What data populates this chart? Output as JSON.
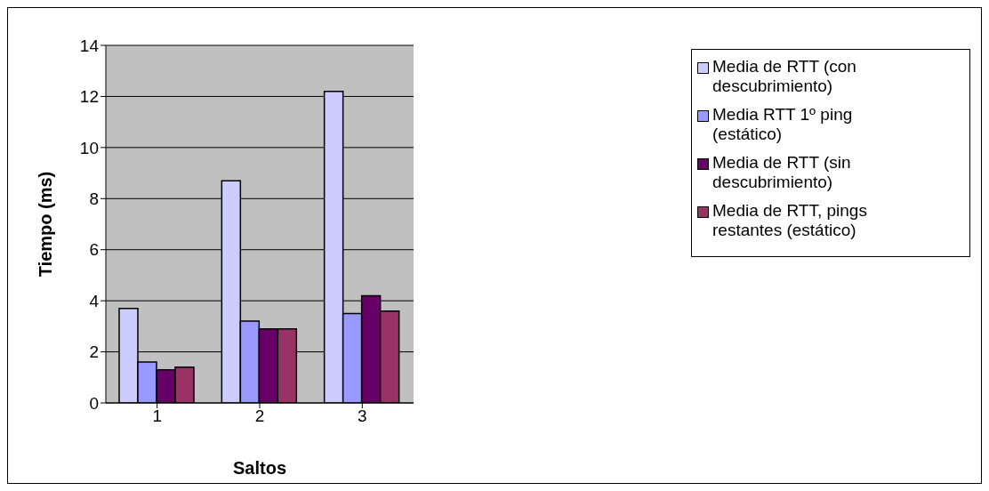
{
  "chart_data": {
    "type": "bar",
    "xlabel": "Saltos",
    "ylabel": "Tiempo (ms)",
    "categories": [
      "1",
      "2",
      "3"
    ],
    "series": [
      {
        "name": "Media de RTT (con descubrimiento)",
        "color": "#ccccff",
        "values": [
          3.7,
          8.7,
          12.2
        ]
      },
      {
        "name": "Media RTT 1º ping (estático)",
        "color": "#9999ff",
        "values": [
          1.6,
          3.2,
          3.5
        ]
      },
      {
        "name": "Media de RTT (sin descubrimiento)",
        "color": "#660066",
        "values": [
          1.3,
          2.9,
          4.2
        ]
      },
      {
        "name": "Media de RTT, pings restantes (estático)",
        "color": "#993366",
        "values": [
          1.4,
          2.9,
          3.6
        ]
      }
    ],
    "ylim": [
      0,
      14
    ],
    "yticks": [
      0,
      2,
      4,
      6,
      8,
      10,
      12,
      14
    ],
    "grid": "y",
    "legend": "right"
  }
}
